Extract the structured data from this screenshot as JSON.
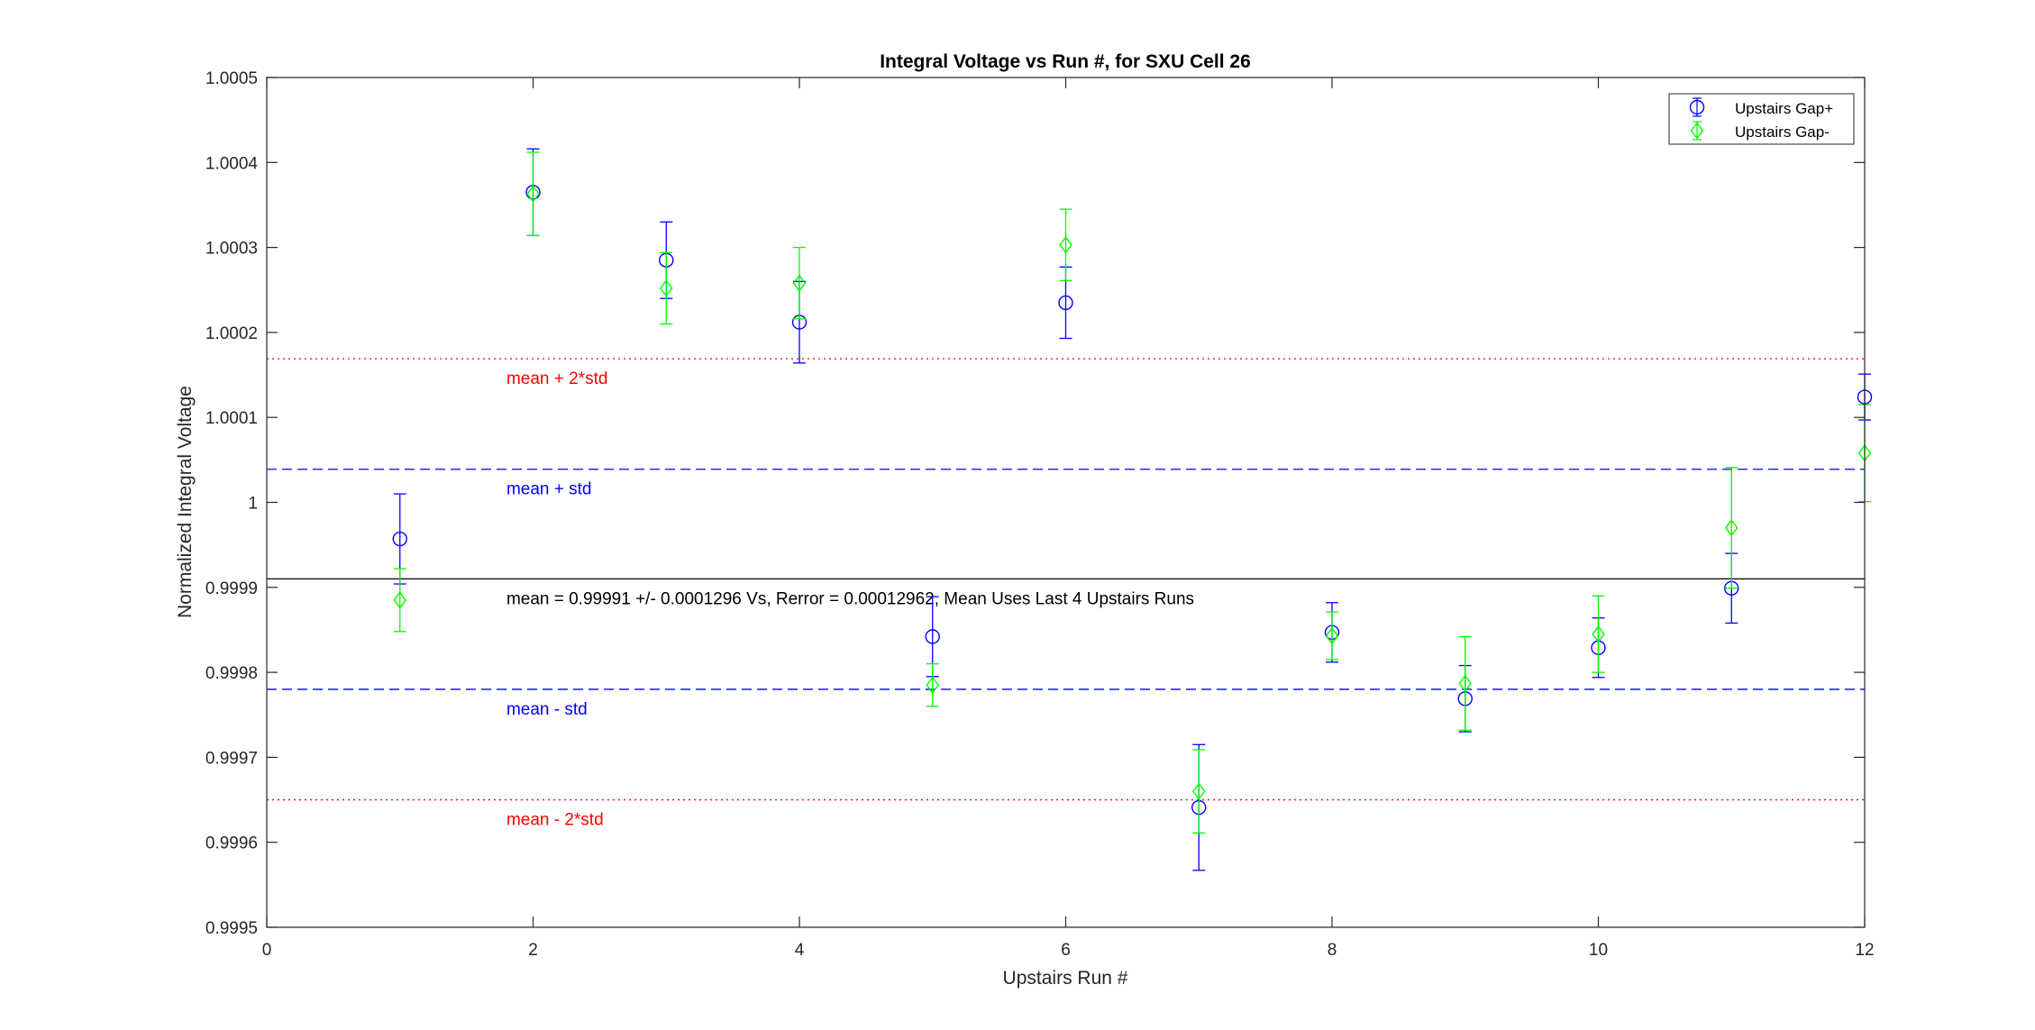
{
  "chart_data": {
    "type": "scatter",
    "title": "Integral Voltage vs Run #, for SXU Cell 26",
    "xlabel": "Upstairs Run #",
    "ylabel": "Normalized Integral Voltage",
    "xlim": [
      0,
      12
    ],
    "ylim": [
      0.9995,
      1.0005
    ],
    "x_ticks": [
      0,
      2,
      4,
      6,
      8,
      10,
      12
    ],
    "x_tick_labels": [
      "0",
      "2",
      "4",
      "6",
      "8",
      "10",
      "12"
    ],
    "y_ticks": [
      0.9995,
      0.9996,
      0.9997,
      0.9998,
      0.9999,
      1.0,
      1.0001,
      1.0002,
      1.0003,
      1.0004,
      1.0005
    ],
    "y_tick_labels": [
      "0.9995",
      "0.9996",
      "0.9997",
      "0.9998",
      "0.9999",
      "1",
      "1.0001",
      "1.0002",
      "1.0003",
      "1.0004",
      "1.0005"
    ],
    "grid": false,
    "legend_position": "top-right",
    "series": [
      {
        "name": "Upstairs Gap+",
        "color": "#0000ff",
        "marker": "circle",
        "x": [
          1,
          2,
          3,
          4,
          5,
          6,
          7,
          8,
          9,
          10,
          11,
          12
        ],
        "y": [
          0.999957,
          1.000365,
          1.000285,
          1.000212,
          0.999842,
          1.000235,
          0.999641,
          0.999847,
          0.999769,
          0.999829,
          0.999899,
          1.000124
        ],
        "err": [
          5.3e-05,
          5.1e-05,
          4.5e-05,
          4.8e-05,
          4.7e-05,
          4.2e-05,
          7.4e-05,
          3.5e-05,
          3.9e-05,
          3.5e-05,
          4.1e-05,
          2.7e-05
        ]
      },
      {
        "name": "Upstairs Gap-",
        "color": "#00ff00",
        "marker": "diamond",
        "x": [
          1,
          2,
          3,
          4,
          5,
          6,
          7,
          8,
          9,
          10,
          11,
          12
        ],
        "y": [
          0.999885,
          1.000363,
          1.000252,
          1.000258,
          0.999785,
          1.000303,
          0.99966,
          0.999843,
          0.999787,
          0.999845,
          0.99997,
          1.000058
        ],
        "err": [
          3.7e-05,
          4.9e-05,
          4.2e-05,
          4.2e-05,
          2.5e-05,
          4.2e-05,
          4.9e-05,
          2.8e-05,
          5.5e-05,
          4.5e-05,
          7.1e-05,
          5.7e-05
        ]
      }
    ],
    "reference_lines": [
      {
        "y": 1.000169,
        "style": "dotted",
        "color": "#ff0000",
        "label": "mean + 2*std"
      },
      {
        "y": 1.000039,
        "style": "dashed",
        "color": "#0000ff",
        "label": "mean + std"
      },
      {
        "y": 0.99991,
        "style": "solid",
        "color": "#000000",
        "label": "mean = 0.99991 +/- 0.0001296 Vs, Rerror = 0.00012962, Mean Uses Last 4 Upstairs Runs"
      },
      {
        "y": 0.99978,
        "style": "dashed",
        "color": "#0000ff",
        "label": "mean - std"
      },
      {
        "y": 0.99965,
        "style": "dotted",
        "color": "#ff0000",
        "label": "mean - 2*std"
      }
    ],
    "reference_label_x": 1.8
  }
}
